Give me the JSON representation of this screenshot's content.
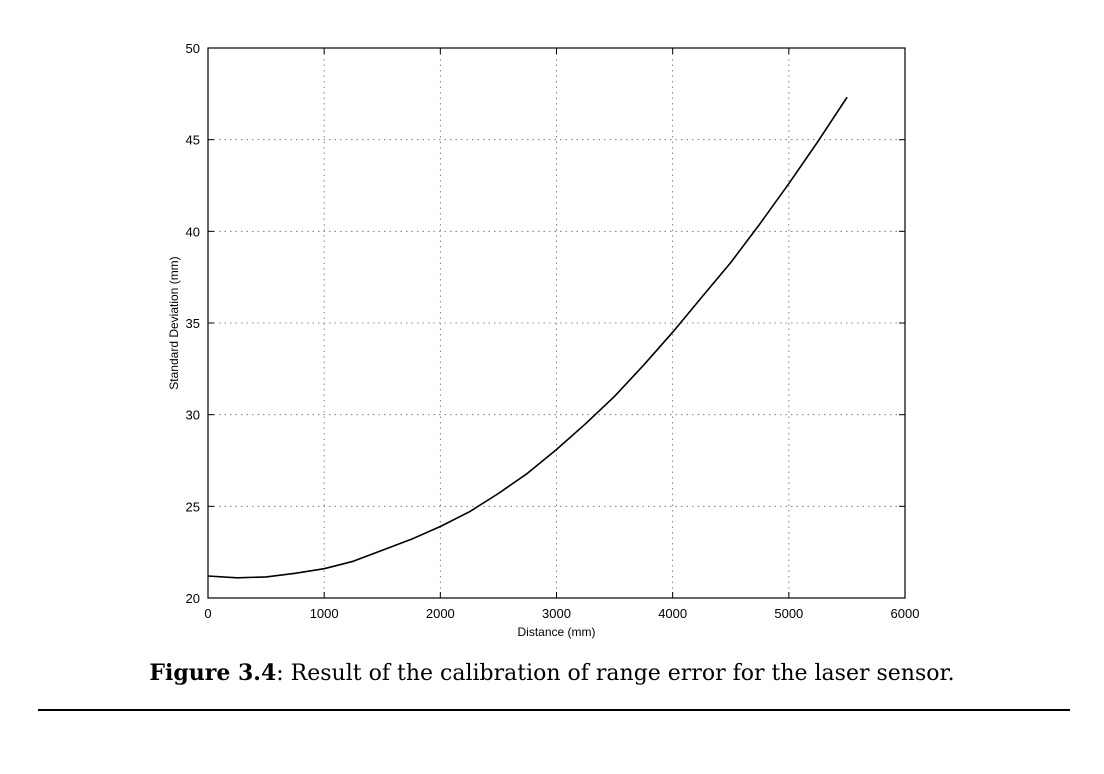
{
  "chart_data": {
    "type": "line",
    "title": "",
    "xlabel": "Distance (mm)",
    "ylabel": "Standard Deviation (mm)",
    "xlim": [
      0,
      6000
    ],
    "ylim": [
      20,
      50
    ],
    "xticks": [
      0,
      1000,
      2000,
      3000,
      4000,
      5000,
      6000
    ],
    "yticks": [
      20,
      25,
      30,
      35,
      40,
      45,
      50
    ],
    "xtick_labels": [
      "0",
      "1000",
      "2000",
      "3000",
      "4000",
      "5000",
      "6000"
    ],
    "ytick_labels": [
      "20",
      "25",
      "30",
      "35",
      "40",
      "45",
      "50"
    ],
    "grid": true,
    "series": [
      {
        "x": [
          0,
          250,
          500,
          750,
          1000,
          1250,
          1500,
          1750,
          2000,
          2250,
          2500,
          2750,
          3000,
          3250,
          3500,
          3750,
          4000,
          4250,
          4500,
          4750,
          5000,
          5250,
          5500
        ],
        "y": [
          21.2,
          21.1,
          21.15,
          21.35,
          21.6,
          22.0,
          22.6,
          23.2,
          23.9,
          24.7,
          25.7,
          26.8,
          28.1,
          29.5,
          31.0,
          32.7,
          34.5,
          36.4,
          38.3,
          40.4,
          42.6,
          44.9,
          47.3
        ]
      }
    ]
  },
  "caption": {
    "label": "Figure 3.4",
    "text": ": Result of the calibration of range error for the laser sensor."
  }
}
